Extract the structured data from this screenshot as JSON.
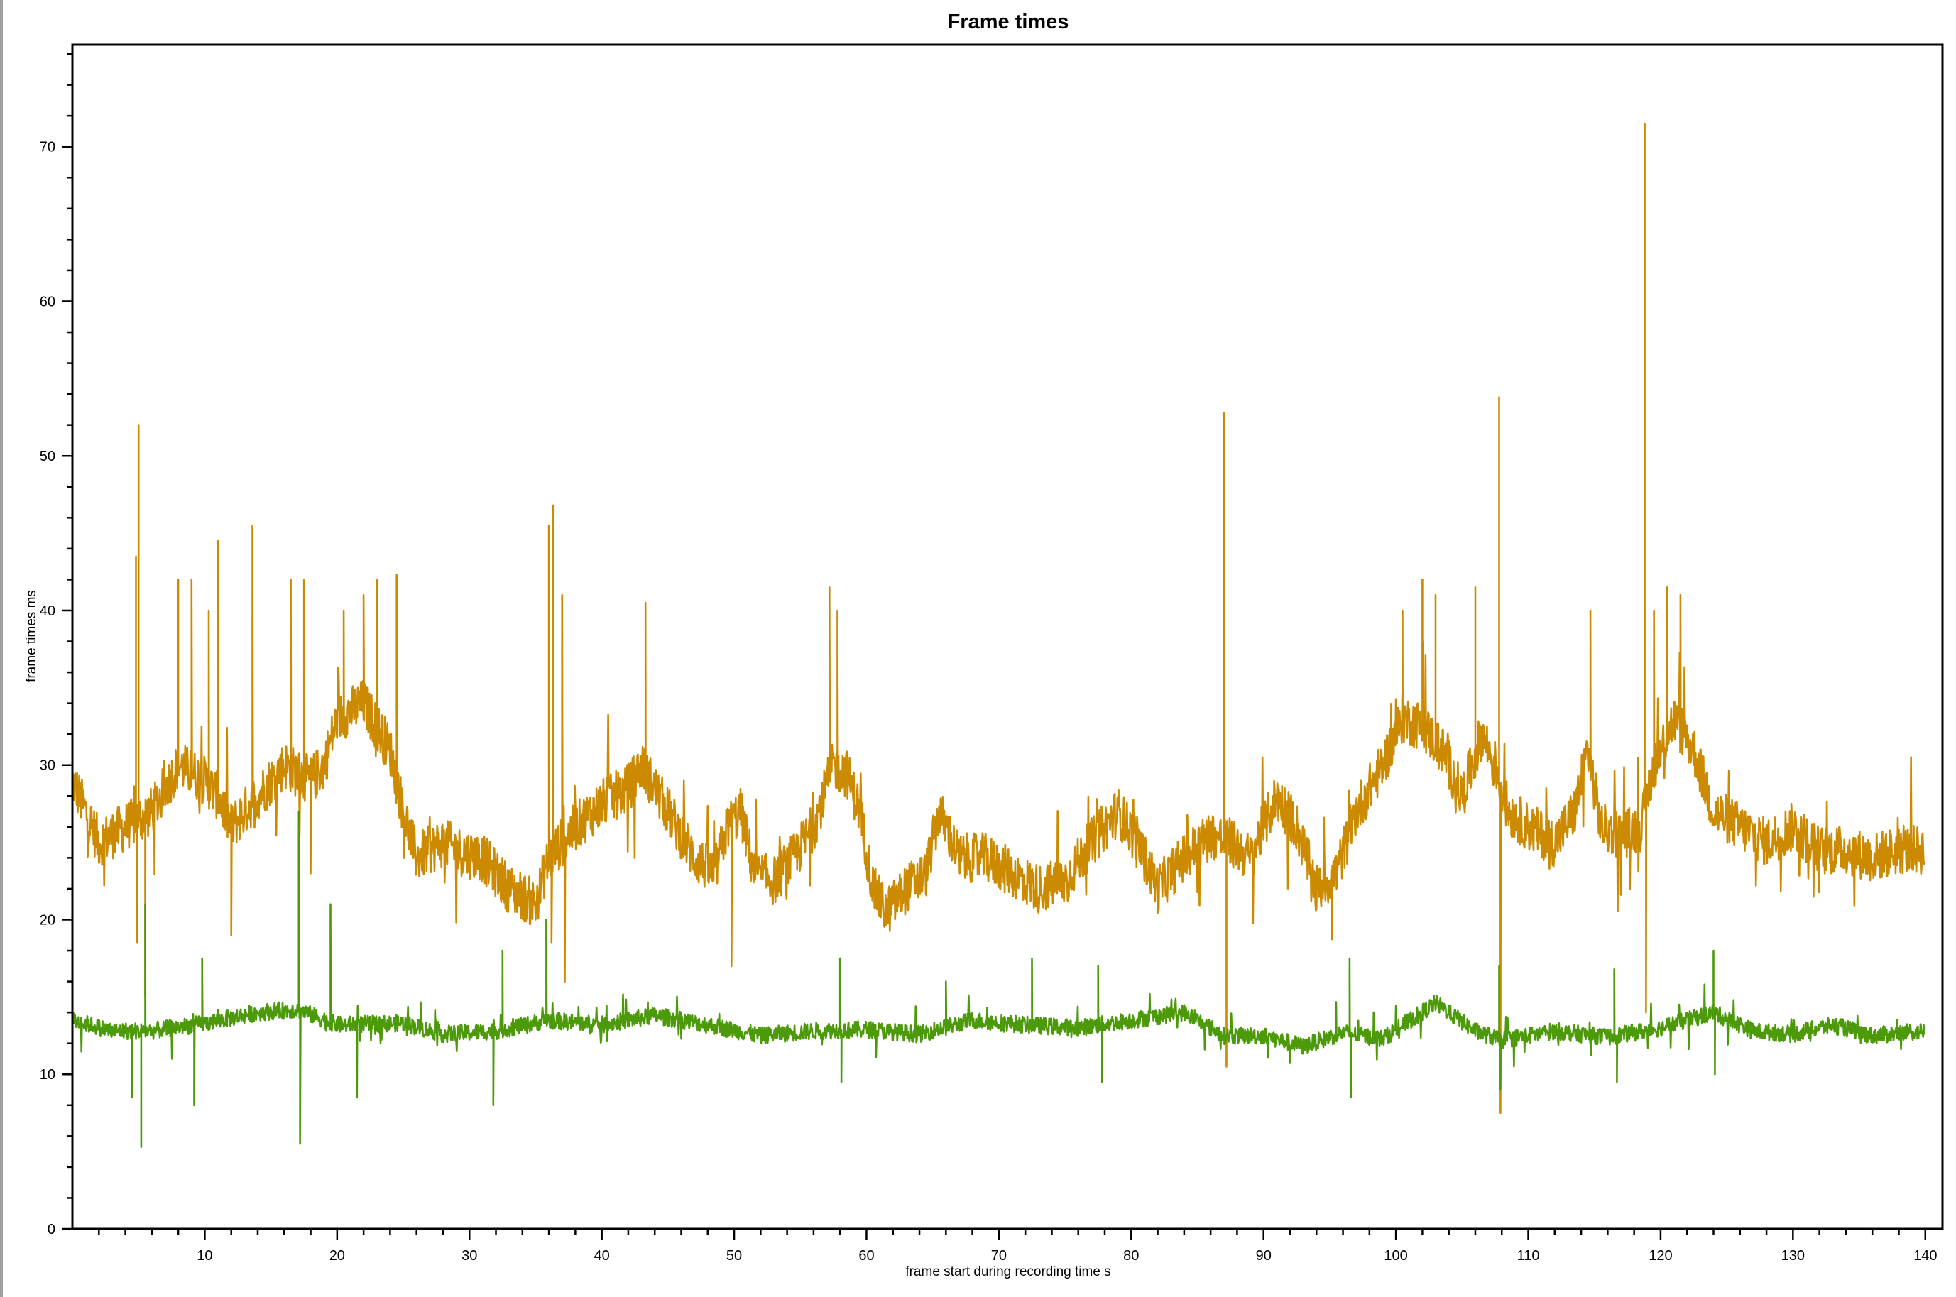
{
  "chart_data": {
    "type": "line",
    "title": "Frame times",
    "xlabel": "frame start during recording time s",
    "ylabel": "frame times ms",
    "xlim": [
      0,
      141.3
    ],
    "ylim": [
      0,
      76.6
    ],
    "x_ticks": [
      10,
      20,
      30,
      40,
      50,
      60,
      70,
      80,
      90,
      100,
      110,
      120,
      130,
      140
    ],
    "y_ticks": [
      0,
      10,
      20,
      30,
      40,
      50,
      60,
      70
    ],
    "grid": false,
    "legend": "none",
    "series": [
      {
        "color": "#CC8A00",
        "baseline": [
          [
            0,
            29
          ],
          [
            2,
            25
          ],
          [
            4,
            26
          ],
          [
            6,
            27
          ],
          [
            8,
            30
          ],
          [
            10,
            29
          ],
          [
            11,
            28
          ],
          [
            12,
            26
          ],
          [
            14,
            28
          ],
          [
            16,
            30
          ],
          [
            18,
            29
          ],
          [
            19,
            30
          ],
          [
            20,
            33
          ],
          [
            22,
            34
          ],
          [
            24,
            31
          ],
          [
            25,
            27
          ],
          [
            26,
            24
          ],
          [
            28,
            25
          ],
          [
            29,
            24.5
          ],
          [
            31,
            24
          ],
          [
            33,
            22
          ],
          [
            35,
            21
          ],
          [
            36,
            24
          ],
          [
            38,
            26
          ],
          [
            40,
            27.5
          ],
          [
            42,
            28.5
          ],
          [
            43,
            30
          ],
          [
            45,
            27
          ],
          [
            47,
            24
          ],
          [
            48.5,
            23
          ],
          [
            49.5,
            26
          ],
          [
            50.5,
            27
          ],
          [
            51.5,
            23
          ],
          [
            53,
            22.5
          ],
          [
            54.5,
            24
          ],
          [
            56,
            26
          ],
          [
            57.5,
            30
          ],
          [
            58.5,
            29.5
          ],
          [
            59.5,
            27
          ],
          [
            60.5,
            22
          ],
          [
            61.5,
            20.5
          ],
          [
            63,
            22
          ],
          [
            64.5,
            23
          ],
          [
            65.5,
            27
          ],
          [
            67,
            24
          ],
          [
            69,
            24
          ],
          [
            71,
            23
          ],
          [
            73,
            22
          ],
          [
            75,
            22.5
          ],
          [
            77,
            25
          ],
          [
            79,
            27
          ],
          [
            80.5,
            25
          ],
          [
            82,
            22
          ],
          [
            84,
            24
          ],
          [
            86,
            25.5
          ],
          [
            87.5,
            25
          ],
          [
            89,
            24
          ],
          [
            91,
            28
          ],
          [
            92.5,
            26
          ],
          [
            94,
            22
          ],
          [
            95.5,
            23
          ],
          [
            97,
            27
          ],
          [
            99,
            30
          ],
          [
            100.5,
            33
          ],
          [
            102,
            32.5
          ],
          [
            103.5,
            31
          ],
          [
            105,
            28
          ],
          [
            106.5,
            32
          ],
          [
            107.5,
            30
          ],
          [
            108.5,
            27
          ],
          [
            110,
            26
          ],
          [
            112,
            25
          ],
          [
            113.5,
            27
          ],
          [
            114.5,
            31
          ],
          [
            115.5,
            26
          ],
          [
            117,
            25.5
          ],
          [
            118.5,
            26
          ],
          [
            119.5,
            30
          ],
          [
            121,
            33
          ],
          [
            122.5,
            31
          ],
          [
            124,
            27
          ],
          [
            126,
            26
          ],
          [
            128,
            25
          ],
          [
            130,
            26
          ],
          [
            132,
            24.5
          ],
          [
            134,
            24.5
          ],
          [
            136,
            24
          ],
          [
            138,
            24.5
          ],
          [
            140,
            24.5
          ]
        ],
        "spikes": [
          [
            4.8,
            43.5
          ],
          [
            4.9,
            18.5
          ],
          [
            5,
            52
          ],
          [
            5.5,
            15
          ],
          [
            8,
            42
          ],
          [
            9,
            42
          ],
          [
            10.3,
            40
          ],
          [
            11,
            44.5
          ],
          [
            12,
            19
          ],
          [
            13.6,
            45.5
          ],
          [
            16.5,
            42
          ],
          [
            17.5,
            42
          ],
          [
            18,
            23
          ],
          [
            20.5,
            40
          ],
          [
            22,
            41
          ],
          [
            23,
            42
          ],
          [
            24.5,
            42.3
          ],
          [
            36,
            45.5
          ],
          [
            36.2,
            18.5
          ],
          [
            36.3,
            46.8
          ],
          [
            37,
            41
          ],
          [
            37.2,
            16
          ],
          [
            43.3,
            40.5
          ],
          [
            49.8,
            17
          ],
          [
            57.2,
            41.5
          ],
          [
            57.8,
            40
          ],
          [
            87,
            52.8
          ],
          [
            87.2,
            10.5
          ],
          [
            100.5,
            40
          ],
          [
            102,
            42
          ],
          [
            103,
            41
          ],
          [
            106,
            41.5
          ],
          [
            107.8,
            53.8
          ],
          [
            107.9,
            7.5
          ],
          [
            114.7,
            40
          ],
          [
            118.8,
            71.5
          ],
          [
            118.9,
            14
          ],
          [
            119.5,
            40
          ],
          [
            120.5,
            41.5
          ],
          [
            121.5,
            41
          ]
        ]
      },
      {
        "color": "#4C9A0A",
        "baseline": [
          [
            0,
            13.5
          ],
          [
            3,
            12.8
          ],
          [
            6,
            12.8
          ],
          [
            10,
            13.3
          ],
          [
            14,
            14
          ],
          [
            17,
            14.2
          ],
          [
            20,
            13.2
          ],
          [
            25,
            13.3
          ],
          [
            28,
            12.6
          ],
          [
            32,
            12.8
          ],
          [
            36,
            13.5
          ],
          [
            40,
            13.2
          ],
          [
            44,
            13.8
          ],
          [
            48,
            13.2
          ],
          [
            52,
            12.5
          ],
          [
            56,
            12.8
          ],
          [
            60,
            12.9
          ],
          [
            64,
            12.6
          ],
          [
            68,
            13.5
          ],
          [
            72,
            13.2
          ],
          [
            76,
            13
          ],
          [
            80,
            13.5
          ],
          [
            84,
            14
          ],
          [
            87,
            12.5
          ],
          [
            90,
            12.5
          ],
          [
            93,
            11.8
          ],
          [
            96,
            12.7
          ],
          [
            99,
            12.3
          ],
          [
            103,
            14.6
          ],
          [
            106,
            12.8
          ],
          [
            108,
            12.2
          ],
          [
            112,
            12.8
          ],
          [
            116,
            12.4
          ],
          [
            120,
            13
          ],
          [
            124,
            14
          ],
          [
            127,
            12.8
          ],
          [
            130,
            12.6
          ],
          [
            133,
            13.2
          ],
          [
            136,
            12.5
          ],
          [
            140,
            12.8
          ]
        ],
        "spikes": [
          [
            4.5,
            8.5
          ],
          [
            5.2,
            5.3
          ],
          [
            5.5,
            21
          ],
          [
            9.2,
            8
          ],
          [
            9.8,
            17.5
          ],
          [
            17.1,
            27
          ],
          [
            17.2,
            5.5
          ],
          [
            19.5,
            21
          ],
          [
            21.5,
            8.5
          ],
          [
            31.8,
            8
          ],
          [
            32.5,
            18
          ],
          [
            35.8,
            20
          ],
          [
            58,
            17.5
          ],
          [
            58.1,
            9.5
          ],
          [
            66,
            16
          ],
          [
            72.5,
            17.5
          ],
          [
            77.5,
            17
          ],
          [
            77.8,
            9.5
          ],
          [
            96.5,
            17.5
          ],
          [
            96.6,
            8.5
          ],
          [
            107.8,
            17
          ],
          [
            107.9,
            9
          ],
          [
            116.5,
            16.8
          ],
          [
            116.7,
            9.5
          ],
          [
            124,
            18
          ],
          [
            124.1,
            10
          ]
        ]
      }
    ]
  }
}
